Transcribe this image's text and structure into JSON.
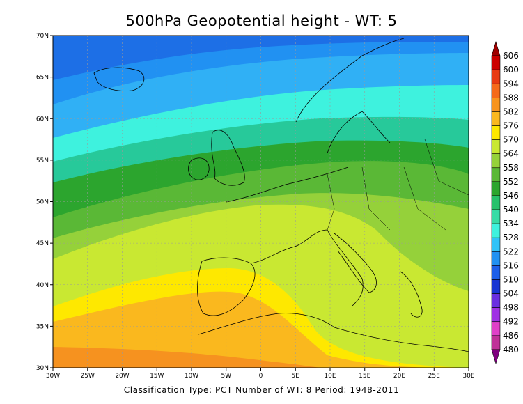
{
  "title": "500hPa Geopotential height - WT: 5",
  "subtitle": "Classification Type: PCT Number of WT: 8 Period: 1948-2011",
  "map": {
    "lon_range": [
      -30,
      30
    ],
    "lat_range": [
      30,
      70
    ],
    "lat_ticks": [
      "70N",
      "65N",
      "60N",
      "55N",
      "50N",
      "45N",
      "40N",
      "35N",
      "30N"
    ],
    "lon_ticks": [
      "30W",
      "25W",
      "20W",
      "15W",
      "10W",
      "5W",
      "0",
      "5E",
      "10E",
      "15E",
      "20E",
      "25E",
      "30E"
    ],
    "grid": true
  },
  "colorbar": {
    "labels": [
      "606",
      "600",
      "594",
      "588",
      "582",
      "576",
      "570",
      "564",
      "558",
      "552",
      "546",
      "540",
      "534",
      "528",
      "522",
      "516",
      "510",
      "504",
      "498",
      "492",
      "486",
      "480"
    ],
    "colors": [
      "#a00000",
      "#cc0000",
      "#e83a12",
      "#f56a1a",
      "#f8941e",
      "#fab81e",
      "#fee800",
      "#c9e832",
      "#95d13a",
      "#5ab836",
      "#2ca52e",
      "#27c16b",
      "#37dca6",
      "#3ef2de",
      "#30c3f8",
      "#2191f2",
      "#1d5fe9",
      "#1935d3",
      "#6a2ee0",
      "#a030e4",
      "#e040c8",
      "#c03098",
      "#800080"
    ]
  }
}
